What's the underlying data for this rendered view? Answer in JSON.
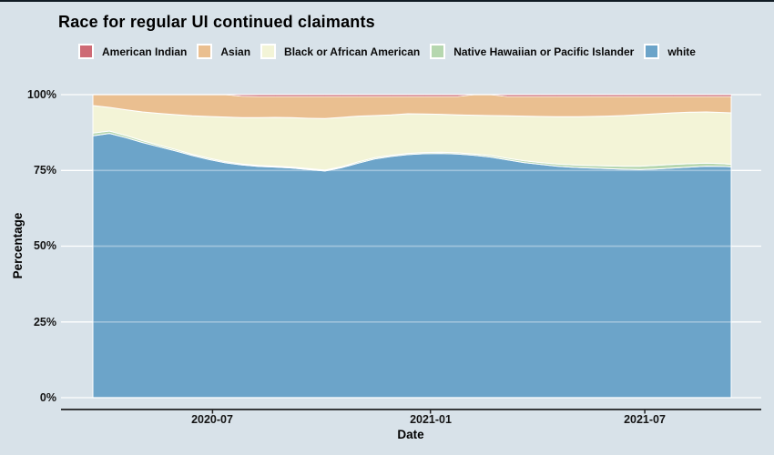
{
  "style": {
    "background": "#d8e2e9",
    "top_border_color": "#111c24",
    "grid_color": "#ffffff",
    "grid_over_data_color": "rgba(255,255,255,0.35)",
    "axis_line_color": "#000000",
    "tick_mark_color": "#222222",
    "text_color": "#000000"
  },
  "chart_data": {
    "type": "area",
    "stacked": true,
    "normalized_percent": true,
    "title": "Race for regular UI continued claimants",
    "xlabel": "Date",
    "ylabel": "Percentage",
    "ylim": [
      0,
      100
    ],
    "grid": "horizontal-white-only",
    "legend_position": "top",
    "x_dates": [
      "2020-03-22",
      "2020-04-05",
      "2020-04-19",
      "2020-05-03",
      "2020-05-17",
      "2020-05-31",
      "2020-06-14",
      "2020-06-28",
      "2020-07-12",
      "2020-07-26",
      "2020-08-09",
      "2020-08-23",
      "2020-09-06",
      "2020-09-20",
      "2020-10-04",
      "2020-10-18",
      "2020-11-01",
      "2020-11-15",
      "2020-11-29",
      "2020-12-13",
      "2020-12-27",
      "2021-01-10",
      "2021-01-24",
      "2021-02-07",
      "2021-02-21",
      "2021-03-07",
      "2021-03-21",
      "2021-04-04",
      "2021-04-18",
      "2021-05-02",
      "2021-05-16",
      "2021-05-30",
      "2021-06-13",
      "2021-06-27",
      "2021-07-11",
      "2021-07-25",
      "2021-08-08",
      "2021-08-22",
      "2021-09-05",
      "2021-09-12"
    ],
    "x_ticks": [
      {
        "date": "2020-07-01",
        "label": "2020-07"
      },
      {
        "date": "2021-01-01",
        "label": "2021-01"
      },
      {
        "date": "2021-07-01",
        "label": "2021-07"
      }
    ],
    "y_ticks": [
      {
        "value": 100,
        "label": "100%"
      },
      {
        "value": 75,
        "label": "75%"
      },
      {
        "value": 50,
        "label": "50%"
      },
      {
        "value": 25,
        "label": "25%"
      },
      {
        "value": 0,
        "label": "0%"
      }
    ],
    "series": [
      {
        "name": "American Indian",
        "color": "#ce6a75",
        "values": [
          0,
          0,
          0,
          0,
          0,
          0,
          0,
          0,
          0,
          0.5,
          0.6,
          0.6,
          0.6,
          0.6,
          0.6,
          0.6,
          0.6,
          0.6,
          0.6,
          0.6,
          0.6,
          0.6,
          0.6,
          0,
          0,
          0.6,
          0.6,
          0.6,
          0.6,
          0.6,
          0.6,
          0.6,
          0.6,
          0.6,
          0.6,
          0.6,
          0.6,
          0.6,
          0.6,
          0.6
        ]
      },
      {
        "name": "Asian",
        "color": "#eabf90",
        "values": [
          3.6,
          4.2,
          5.0,
          5.7,
          6.2,
          6.6,
          7.0,
          7.2,
          7.4,
          7.1,
          7.0,
          6.9,
          7.0,
          7.2,
          7.3,
          6.9,
          6.5,
          6.3,
          6.1,
          5.7,
          5.8,
          5.9,
          6.1,
          6.8,
          6.9,
          6.4,
          6.5,
          6.6,
          6.7,
          6.7,
          6.6,
          6.5,
          6.3,
          6.0,
          5.7,
          5.4,
          5.2,
          5.1,
          5.3,
          5.4
        ]
      },
      {
        "name": "Black or African American",
        "color": "#f3f4d7",
        "values": [
          9.1,
          7.8,
          8.5,
          9.5,
          10.5,
          11.5,
          12.7,
          13.8,
          14.7,
          15.3,
          15.8,
          16.1,
          16.3,
          16.6,
          17.0,
          16.3,
          15.1,
          13.9,
          13.3,
          13.1,
          12.7,
          12.5,
          12.5,
          12.8,
          13.2,
          14.0,
          14.7,
          15.2,
          15.6,
          15.9,
          16.2,
          16.4,
          16.7,
          17.0,
          17.0,
          17.0,
          17.0,
          16.9,
          16.9,
          17.0
        ]
      },
      {
        "name": "Native Hawaiian or Pacific Islander",
        "color": "#b6d7af",
        "values": [
          0.9,
          0.8,
          0.7,
          0.6,
          0.5,
          0.5,
          0.4,
          0.4,
          0.4,
          0.3,
          0.3,
          0.3,
          0.3,
          0.3,
          0.3,
          0.3,
          0.4,
          0.4,
          0.4,
          0.4,
          0.4,
          0.4,
          0.4,
          0.4,
          0.5,
          0.5,
          0.6,
          0.6,
          0.7,
          0.8,
          0.8,
          0.9,
          1.0,
          1.1,
          1.2,
          1.2,
          1.1,
          1.0,
          0.9,
          0.8
        ]
      },
      {
        "name": "white",
        "color": "#6ca4c9",
        "values": [
          86.4,
          87.2,
          85.8,
          84.2,
          82.8,
          81.4,
          79.9,
          78.6,
          77.5,
          76.8,
          76.3,
          76.1,
          75.8,
          75.3,
          74.8,
          75.9,
          77.4,
          78.8,
          79.6,
          80.2,
          80.5,
          80.6,
          80.4,
          80.0,
          79.4,
          78.5,
          77.6,
          77.0,
          76.4,
          76.0,
          75.8,
          75.6,
          75.4,
          75.3,
          75.5,
          75.8,
          76.1,
          76.4,
          76.3,
          76.2
        ]
      }
    ],
    "stack_order_bottom_to_top": [
      "white",
      "Native Hawaiian or Pacific Islander",
      "Black or African American",
      "Asian",
      "American Indian"
    ]
  }
}
